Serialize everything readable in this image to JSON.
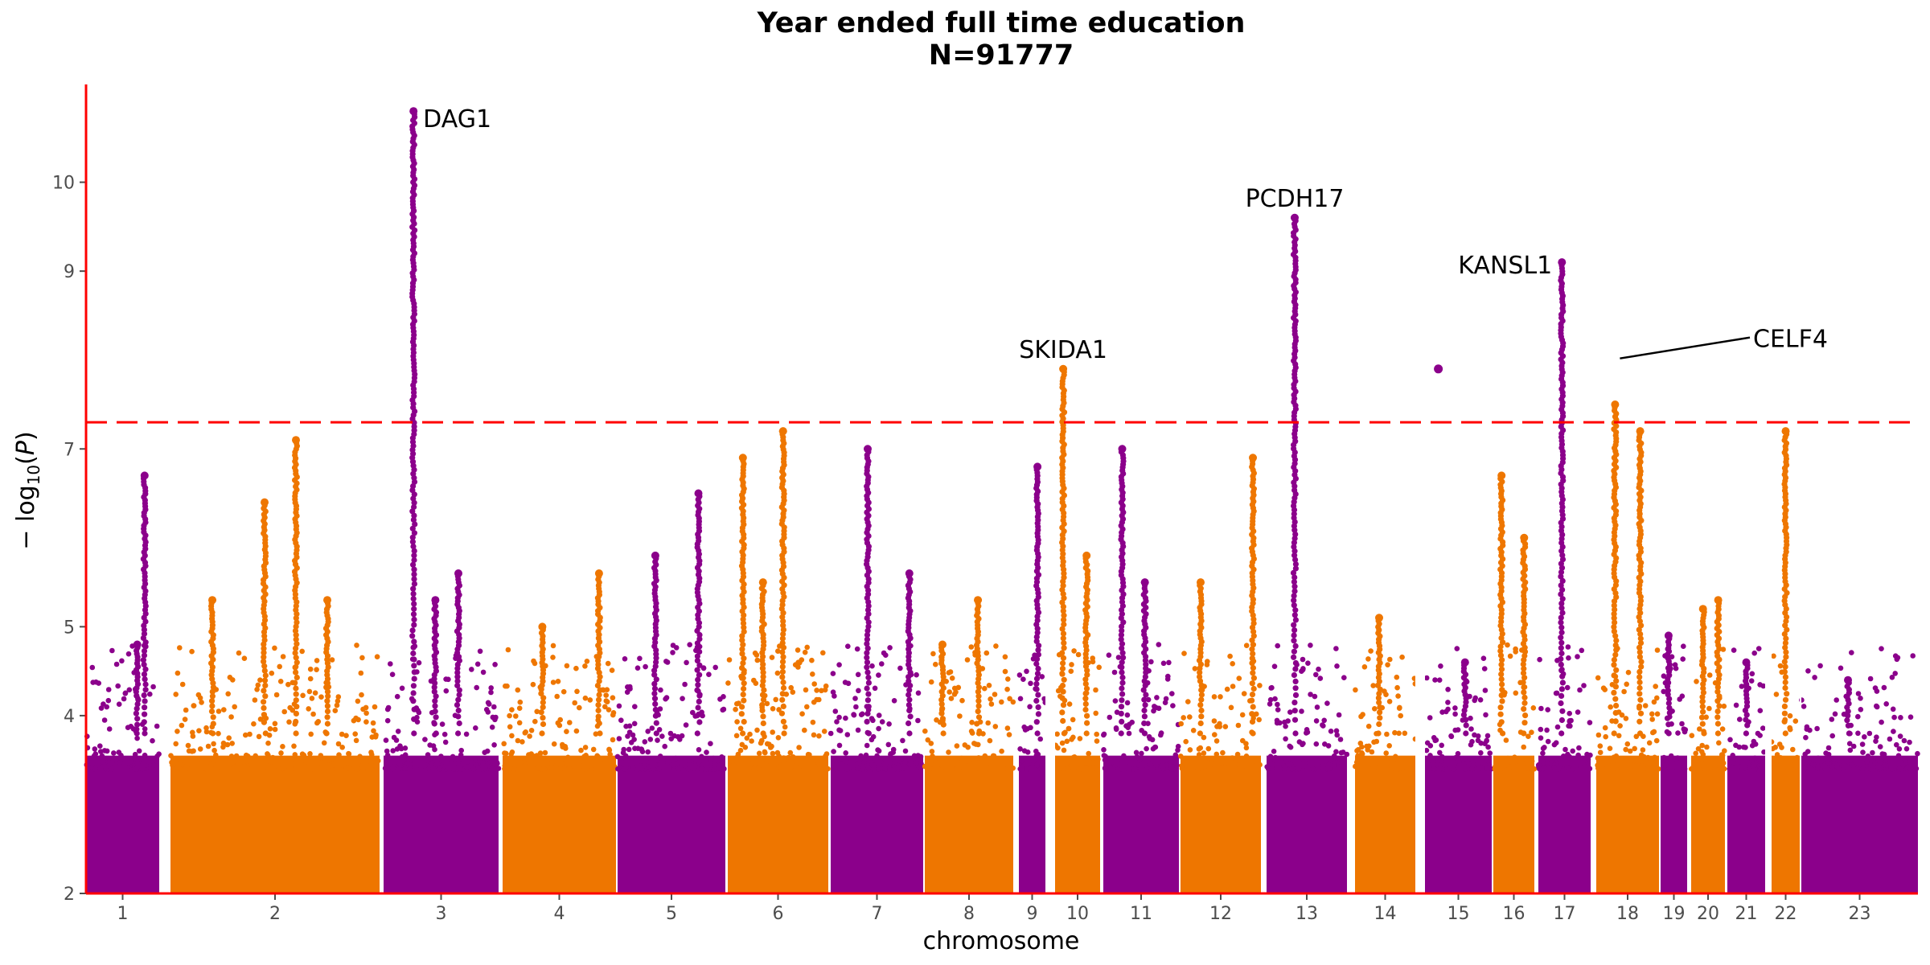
{
  "chart_data": {
    "type": "scatter",
    "subtype": "manhattan",
    "title": "Year ended full time education",
    "subtitle": "N=91777",
    "xlabel": "chromosome",
    "ylabel": "− log10(P)",
    "ylim": [
      2,
      11.1
    ],
    "yticks": [
      2,
      4,
      5,
      7,
      9,
      10
    ],
    "significance_threshold": 7.3,
    "threshold_color": "#ff0000",
    "colors": {
      "odd": "#8b008b",
      "even": "#ee7600",
      "axis": "#ff0000"
    },
    "chromosomes": [
      {
        "label": "1",
        "color": "odd",
        "peaks": [
          {
            "pos": 0.8,
            "y": 6.7
          },
          {
            "pos": 0.7,
            "y": 4.8
          }
        ]
      },
      {
        "label": "2",
        "color": "even",
        "peaks": [
          {
            "pos": 0.45,
            "y": 6.4
          },
          {
            "pos": 0.2,
            "y": 5.3
          },
          {
            "pos": 0.75,
            "y": 5.3
          },
          {
            "pos": 0.6,
            "y": 7.1
          }
        ]
      },
      {
        "label": "3",
        "color": "odd",
        "peaks": [
          {
            "pos": 0.26,
            "y": 10.8
          },
          {
            "pos": 0.45,
            "y": 5.3
          },
          {
            "pos": 0.65,
            "y": 5.6
          }
        ]
      },
      {
        "label": "4",
        "color": "even",
        "peaks": [
          {
            "pos": 0.85,
            "y": 5.6
          },
          {
            "pos": 0.35,
            "y": 5.0
          }
        ]
      },
      {
        "label": "5",
        "color": "odd",
        "peaks": [
          {
            "pos": 0.35,
            "y": 5.8
          },
          {
            "pos": 0.75,
            "y": 6.5
          }
        ]
      },
      {
        "label": "6",
        "color": "even",
        "peaks": [
          {
            "pos": 0.55,
            "y": 7.2
          },
          {
            "pos": 0.15,
            "y": 6.9
          },
          {
            "pos": 0.35,
            "y": 5.5
          }
        ]
      },
      {
        "label": "7",
        "color": "odd",
        "peaks": [
          {
            "pos": 0.4,
            "y": 7.0
          },
          {
            "pos": 0.85,
            "y": 5.6
          }
        ]
      },
      {
        "label": "8",
        "color": "even",
        "peaks": [
          {
            "pos": 0.6,
            "y": 5.3
          },
          {
            "pos": 0.2,
            "y": 4.8
          }
        ]
      },
      {
        "label": "9",
        "color": "odd",
        "peaks": [
          {
            "pos": 0.7,
            "y": 6.8
          }
        ]
      },
      {
        "label": "10",
        "color": "even",
        "peaks": [
          {
            "pos": 0.18,
            "y": 7.9
          },
          {
            "pos": 0.7,
            "y": 5.8
          }
        ]
      },
      {
        "label": "11",
        "color": "odd",
        "peaks": [
          {
            "pos": 0.25,
            "y": 7.0
          },
          {
            "pos": 0.55,
            "y": 5.5
          }
        ]
      },
      {
        "label": "12",
        "color": "even",
        "peaks": [
          {
            "pos": 0.9,
            "y": 6.9
          },
          {
            "pos": 0.25,
            "y": 5.5
          }
        ]
      },
      {
        "label": "13",
        "color": "odd",
        "peaks": [
          {
            "pos": 0.35,
            "y": 9.6
          }
        ]
      },
      {
        "label": "14",
        "color": "even",
        "peaks": [
          {
            "pos": 0.4,
            "y": 5.1
          }
        ]
      },
      {
        "label": "15",
        "color": "odd",
        "peaks": [
          {
            "pos": 0.6,
            "y": 4.6
          }
        ]
      },
      {
        "label": "16",
        "color": "even",
        "peaks": [
          {
            "pos": 0.75,
            "y": 6.0
          },
          {
            "pos": 0.2,
            "y": 6.7
          }
        ]
      },
      {
        "label": "17",
        "color": "odd",
        "peaks": [
          {
            "pos": 0.45,
            "y": 9.1
          }
        ]
      },
      {
        "label": "18",
        "color": "even",
        "peaks": [
          {
            "pos": 0.3,
            "y": 7.5
          },
          {
            "pos": 0.7,
            "y": 7.2
          }
        ]
      },
      {
        "label": "19",
        "color": "odd",
        "peaks": [
          {
            "pos": 0.3,
            "y": 4.9
          }
        ]
      },
      {
        "label": "20",
        "color": "even",
        "peaks": [
          {
            "pos": 0.35,
            "y": 5.2
          },
          {
            "pos": 0.8,
            "y": 5.3
          }
        ]
      },
      {
        "label": "21",
        "color": "odd",
        "peaks": [
          {
            "pos": 0.5,
            "y": 4.6
          }
        ]
      },
      {
        "label": "22",
        "color": "even",
        "peaks": [
          {
            "pos": 0.5,
            "y": 7.2
          }
        ]
      },
      {
        "label": "23",
        "color": "odd",
        "peaks": [
          {
            "pos": 0.4,
            "y": 4.4
          }
        ]
      }
    ],
    "isolated_points": [
      {
        "chr": "15",
        "pos": 0.2,
        "y": 7.9
      }
    ],
    "annotations": [
      {
        "gene": "DAG1",
        "chr": "3",
        "pos": 0.26,
        "y": 10.8,
        "text_anchor": "start"
      },
      {
        "gene": "PCDH17",
        "chr": "13",
        "pos": 0.35,
        "y": 9.6,
        "text_anchor": "middle"
      },
      {
        "gene": "SKIDA1",
        "chr": "10",
        "pos": 0.18,
        "y": 7.9,
        "text_anchor": "middle"
      },
      {
        "gene": "KANSL1",
        "chr": "17",
        "pos": 0.45,
        "y": 9.1,
        "text_anchor": "end"
      },
      {
        "gene": "CELF4",
        "chr": "18",
        "pos": 0.3,
        "y": 8.0,
        "text_anchor": "start",
        "leader_line": true
      }
    ]
  }
}
